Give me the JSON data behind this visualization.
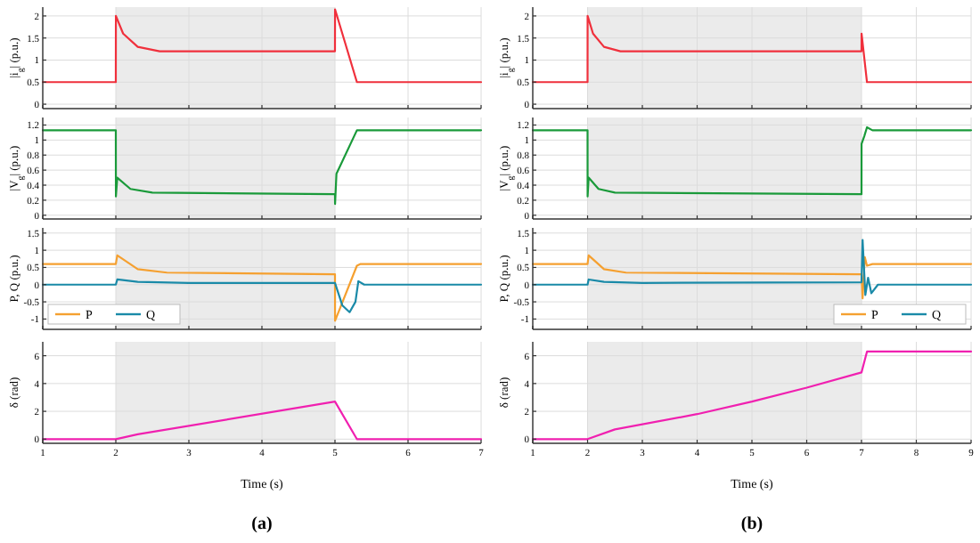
{
  "chart_data": [
    {
      "type": "line",
      "ylabel": "|i$_{g}$| (p.u.)",
      "xlim": [
        1,
        7
      ],
      "xticks": [
        1,
        2,
        3,
        4,
        5,
        6,
        7
      ],
      "ylim": [
        -0.1,
        2.2
      ],
      "yticks": [
        0,
        0.5,
        1,
        1.5,
        2
      ],
      "grid": true,
      "tick_labels": "y",
      "bands": [
        {
          "axis": "x",
          "from": 2,
          "to": 5,
          "color": "#ebebeb"
        }
      ],
      "series": [
        {
          "color": "#f0303c",
          "x": [
            1,
            2,
            2.001,
            2.1,
            2.3,
            2.6,
            5,
            5.001,
            5.3,
            7
          ],
          "values": [
            0.5,
            0.5,
            2.0,
            1.6,
            1.3,
            1.2,
            1.2,
            2.15,
            0.5,
            0.5
          ]
        }
      ]
    },
    {
      "type": "line",
      "ylabel": "|V$_{g}$| (p.u.)",
      "xlim": [
        1,
        7
      ],
      "xticks": [
        1,
        2,
        3,
        4,
        5,
        6,
        7
      ],
      "ylim": [
        -0.05,
        1.3
      ],
      "yticks": [
        0,
        0.2,
        0.4,
        0.6,
        0.8,
        1,
        1.2
      ],
      "grid": true,
      "tick_labels": "y",
      "bands": [
        {
          "axis": "x",
          "from": 2,
          "to": 5,
          "color": "#ebebeb"
        }
      ],
      "series": [
        {
          "color": "#1a9a3a",
          "x": [
            1,
            2,
            2.001,
            2.02,
            2.2,
            2.5,
            5,
            5.001,
            5.02,
            5.3,
            7
          ],
          "values": [
            1.13,
            1.13,
            0.25,
            0.5,
            0.35,
            0.3,
            0.28,
            0.15,
            0.55,
            1.13,
            1.13
          ]
        }
      ]
    },
    {
      "type": "line",
      "ylabel": "P, Q (p.u.)",
      "xlim": [
        1,
        7
      ],
      "xticks": [
        1,
        2,
        3,
        4,
        5,
        6,
        7
      ],
      "ylim": [
        -1.3,
        1.65
      ],
      "yticks": [
        -1,
        -0.5,
        0,
        0.5,
        1,
        1.5
      ],
      "grid": true,
      "tick_labels": "y",
      "legend": "bottom left",
      "bands": [
        {
          "axis": "x",
          "from": 2,
          "to": 5,
          "color": "#ebebeb"
        }
      ],
      "series": [
        {
          "name": "P",
          "color": "#f5a030",
          "x": [
            1,
            2,
            2.02,
            2.3,
            2.7,
            5,
            5.001,
            5.3,
            5.35,
            7
          ],
          "values": [
            0.6,
            0.6,
            0.85,
            0.45,
            0.35,
            0.3,
            -1.05,
            0.55,
            0.6,
            0.6
          ]
        },
        {
          "name": "Q",
          "color": "#1a8aa8",
          "x": [
            1,
            2,
            2.02,
            2.3,
            3,
            5,
            5.1,
            5.2,
            5.28,
            5.32,
            5.4,
            7
          ],
          "values": [
            0,
            0,
            0.15,
            0.08,
            0.05,
            0.05,
            -0.6,
            -0.8,
            -0.5,
            0.1,
            0,
            0
          ]
        }
      ]
    },
    {
      "type": "line",
      "ylabel": "δ (rad)",
      "xlabel": "Time (s)",
      "annotations": [
        "(a)"
      ],
      "xlim": [
        1,
        7
      ],
      "xticks": [
        1,
        2,
        3,
        4,
        5,
        6,
        7
      ],
      "ylim": [
        -0.3,
        7
      ],
      "yticks": [
        0,
        2,
        4,
        6
      ],
      "grid": true,
      "bands": [
        {
          "axis": "x",
          "from": 2,
          "to": 5,
          "color": "#ebebeb"
        }
      ],
      "series": [
        {
          "color": "#f020b0",
          "x": [
            1,
            2,
            2.3,
            5,
            5.3,
            7
          ],
          "values": [
            0,
            0,
            0.35,
            2.7,
            0,
            0
          ]
        }
      ]
    },
    {
      "type": "line",
      "ylabel": "|i$_{g}$| (p.u.)",
      "xlim": [
        1,
        9
      ],
      "xticks": [
        1,
        2,
        3,
        4,
        5,
        6,
        7,
        8,
        9
      ],
      "ylim": [
        -0.1,
        2.2
      ],
      "yticks": [
        0,
        0.5,
        1,
        1.5,
        2
      ],
      "grid": true,
      "tick_labels": "y",
      "bands": [
        {
          "axis": "x",
          "from": 2,
          "to": 7,
          "color": "#ebebeb"
        }
      ],
      "series": [
        {
          "color": "#f0303c",
          "x": [
            1,
            2,
            2.001,
            2.1,
            2.3,
            2.6,
            7,
            7.001,
            7.1,
            9
          ],
          "values": [
            0.5,
            0.5,
            2.0,
            1.6,
            1.3,
            1.2,
            1.2,
            1.6,
            0.5,
            0.5
          ]
        }
      ]
    },
    {
      "type": "line",
      "ylabel": "|V$_{g}$| (p.u.)",
      "xlim": [
        1,
        9
      ],
      "xticks": [
        1,
        2,
        3,
        4,
        5,
        6,
        7,
        8,
        9
      ],
      "ylim": [
        -0.05,
        1.3
      ],
      "yticks": [
        0,
        0.2,
        0.4,
        0.6,
        0.8,
        1,
        1.2
      ],
      "grid": true,
      "tick_labels": "y",
      "bands": [
        {
          "axis": "x",
          "from": 2,
          "to": 7,
          "color": "#ebebeb"
        }
      ],
      "series": [
        {
          "color": "#1a9a3a",
          "x": [
            1,
            2,
            2.001,
            2.02,
            2.2,
            2.5,
            7,
            7.001,
            7.05,
            7.1,
            7.2,
            9
          ],
          "values": [
            1.13,
            1.13,
            0.25,
            0.5,
            0.35,
            0.3,
            0.28,
            0.95,
            1.05,
            1.17,
            1.13,
            1.13
          ]
        }
      ]
    },
    {
      "type": "line",
      "ylabel": "P, Q (p.u.)",
      "xlim": [
        1,
        9
      ],
      "xticks": [
        1,
        2,
        3,
        4,
        5,
        6,
        7,
        8,
        9
      ],
      "ylim": [
        -1.3,
        1.65
      ],
      "yticks": [
        -1,
        -0.5,
        0,
        0.5,
        1,
        1.5
      ],
      "grid": true,
      "tick_labels": "y",
      "legend": "bottom right",
      "bands": [
        {
          "axis": "x",
          "from": 2,
          "to": 7,
          "color": "#ebebeb"
        }
      ],
      "series": [
        {
          "name": "P",
          "color": "#f5a030",
          "x": [
            1,
            2,
            2.02,
            2.3,
            2.7,
            7,
            7.02,
            7.06,
            7.1,
            7.2,
            9
          ],
          "values": [
            0.6,
            0.6,
            0.85,
            0.45,
            0.35,
            0.3,
            -0.4,
            0.8,
            0.55,
            0.6,
            0.6
          ]
        },
        {
          "name": "Q",
          "color": "#1a8aa8",
          "x": [
            1,
            2,
            2.02,
            2.3,
            3,
            7,
            7.02,
            7.07,
            7.12,
            7.18,
            7.3,
            9
          ],
          "values": [
            0,
            0,
            0.15,
            0.08,
            0.05,
            0.07,
            1.3,
            -0.3,
            0.2,
            -0.25,
            0,
            0
          ]
        }
      ]
    },
    {
      "type": "line",
      "ylabel": "δ (rad)",
      "xlabel": "Time (s)",
      "annotations": [
        "(b)"
      ],
      "xlim": [
        1,
        9
      ],
      "xticks": [
        1,
        2,
        3,
        4,
        5,
        6,
        7,
        8,
        9
      ],
      "ylim": [
        -0.3,
        7
      ],
      "yticks": [
        0,
        2,
        4,
        6
      ],
      "grid": true,
      "bands": [
        {
          "axis": "x",
          "from": 2,
          "to": 7,
          "color": "#ebebeb"
        }
      ],
      "series": [
        {
          "color": "#f020b0",
          "x": [
            1,
            2,
            2.5,
            4,
            5,
            6,
            7,
            7.1,
            9
          ],
          "values": [
            0,
            0,
            0.7,
            1.8,
            2.7,
            3.7,
            4.8,
            6.3,
            6.3
          ]
        }
      ]
    }
  ]
}
